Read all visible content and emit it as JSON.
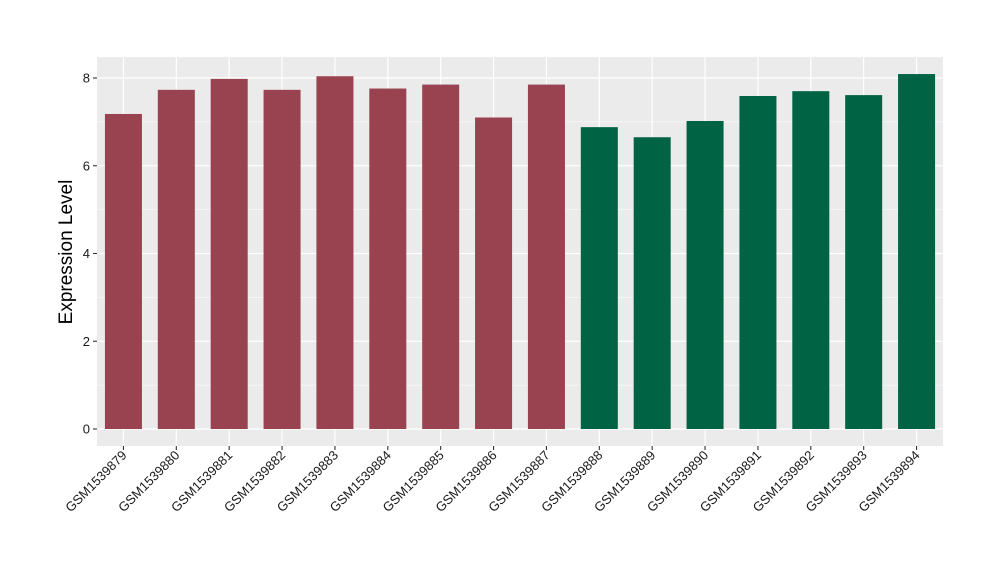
{
  "chart_data": {
    "type": "bar",
    "title": "",
    "xlabel": "",
    "ylabel": "Expression Level",
    "ylim": [
      0,
      8.5
    ],
    "yticks": [
      0,
      2,
      4,
      6,
      8
    ],
    "grid": true,
    "legend": "none",
    "background": "#EBEBEB",
    "gridline_color": "#FFFFFF",
    "categories": [
      "GSM1539879",
      "GSM1539880",
      "GSM1539881",
      "GSM1539882",
      "GSM1539883",
      "GSM1539884",
      "GSM1539885",
      "GSM1539886",
      "GSM1539887",
      "GSM1539888",
      "GSM1539889",
      "GSM1539890",
      "GSM1539891",
      "GSM1539892",
      "GSM1539893",
      "GSM1539894"
    ],
    "values": [
      7.18,
      7.73,
      7.98,
      7.73,
      8.04,
      7.76,
      7.85,
      7.1,
      7.85,
      6.88,
      6.65,
      7.02,
      7.59,
      7.7,
      7.61,
      8.09
    ],
    "bar_colors": [
      "#994350",
      "#994350",
      "#994350",
      "#994350",
      "#994350",
      "#994350",
      "#994350",
      "#994350",
      "#994350",
      "#006444",
      "#006444",
      "#006444",
      "#006444",
      "#006444",
      "#006444",
      "#006444"
    ]
  }
}
